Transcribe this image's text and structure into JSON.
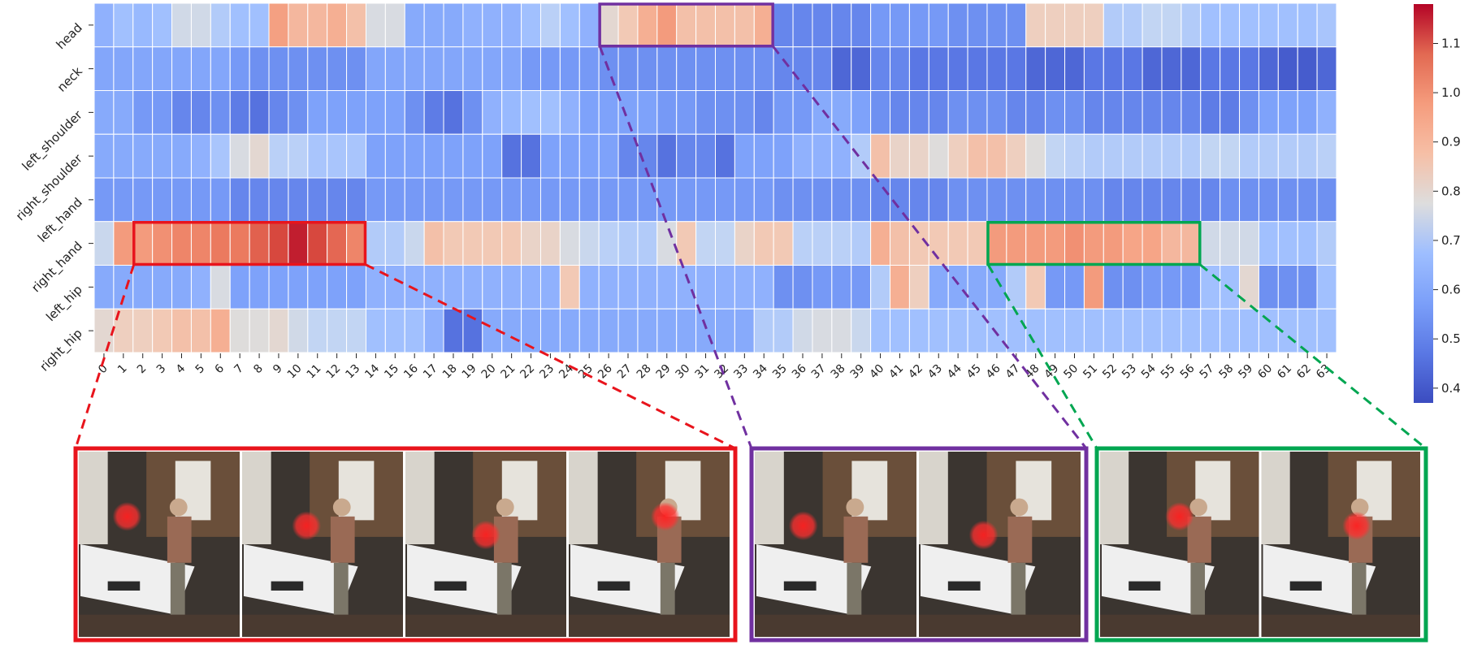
{
  "chart_data": {
    "type": "heatmap",
    "title": "",
    "xlabel": "",
    "ylabel": "",
    "rows": [
      "head",
      "neck",
      "left_shoulder",
      "right_shoulder",
      "left_hand",
      "right_hand",
      "left_hip",
      "right_hip"
    ],
    "columns": [
      "0",
      "1",
      "2",
      "3",
      "4",
      "5",
      "6",
      "7",
      "8",
      "9",
      "10",
      "11",
      "12",
      "13",
      "14",
      "15",
      "16",
      "17",
      "18",
      "19",
      "20",
      "21",
      "22",
      "23",
      "24",
      "25",
      "26",
      "27",
      "28",
      "29",
      "30",
      "31",
      "32",
      "33",
      "34",
      "35",
      "36",
      "37",
      "38",
      "39",
      "40",
      "41",
      "42",
      "43",
      "44",
      "45",
      "46",
      "47",
      "48",
      "49",
      "50",
      "51",
      "52",
      "53",
      "54",
      "55",
      "56",
      "57",
      "58",
      "59",
      "60",
      "61",
      "62",
      "63"
    ],
    "values": [
      [
        0.58,
        0.62,
        0.6,
        0.62,
        0.74,
        0.74,
        0.66,
        0.62,
        0.62,
        0.95,
        0.9,
        0.9,
        0.92,
        0.88,
        0.76,
        0.76,
        0.56,
        0.56,
        0.56,
        0.58,
        0.58,
        0.58,
        0.62,
        0.68,
        0.62,
        0.58,
        0.8,
        0.86,
        0.92,
        0.96,
        0.88,
        0.88,
        0.88,
        0.88,
        0.92,
        0.48,
        0.48,
        0.48,
        0.48,
        0.48,
        0.52,
        0.52,
        0.52,
        0.52,
        0.5,
        0.5,
        0.5,
        0.5,
        0.84,
        0.84,
        0.84,
        0.84,
        0.66,
        0.66,
        0.7,
        0.7,
        0.66,
        0.62,
        0.62,
        0.62,
        0.62,
        0.62,
        0.62,
        0.64
      ],
      [
        0.55,
        0.55,
        0.55,
        0.55,
        0.55,
        0.55,
        0.55,
        0.52,
        0.5,
        0.5,
        0.5,
        0.5,
        0.5,
        0.5,
        0.55,
        0.55,
        0.55,
        0.55,
        0.55,
        0.55,
        0.55,
        0.55,
        0.52,
        0.52,
        0.52,
        0.52,
        0.5,
        0.5,
        0.5,
        0.5,
        0.5,
        0.5,
        0.5,
        0.5,
        0.5,
        0.48,
        0.48,
        0.48,
        0.42,
        0.42,
        0.48,
        0.48,
        0.45,
        0.45,
        0.45,
        0.45,
        0.45,
        0.45,
        0.42,
        0.42,
        0.42,
        0.45,
        0.45,
        0.45,
        0.42,
        0.42,
        0.42,
        0.45,
        0.45,
        0.45,
        0.42,
        0.4,
        0.4,
        0.42
      ],
      [
        0.56,
        0.56,
        0.52,
        0.52,
        0.48,
        0.48,
        0.5,
        0.46,
        0.44,
        0.48,
        0.5,
        0.54,
        0.54,
        0.54,
        0.54,
        0.54,
        0.5,
        0.46,
        0.44,
        0.5,
        0.58,
        0.6,
        0.62,
        0.62,
        0.58,
        0.54,
        0.54,
        0.54,
        0.54,
        0.52,
        0.52,
        0.5,
        0.5,
        0.5,
        0.48,
        0.52,
        0.52,
        0.56,
        0.56,
        0.54,
        0.5,
        0.48,
        0.48,
        0.48,
        0.5,
        0.5,
        0.5,
        0.48,
        0.48,
        0.5,
        0.5,
        0.48,
        0.48,
        0.48,
        0.48,
        0.48,
        0.48,
        0.46,
        0.46,
        0.5,
        0.54,
        0.54,
        0.54,
        0.58
      ],
      [
        0.56,
        0.56,
        0.56,
        0.56,
        0.56,
        0.58,
        0.64,
        0.76,
        0.8,
        0.68,
        0.68,
        0.64,
        0.64,
        0.64,
        0.54,
        0.54,
        0.54,
        0.54,
        0.54,
        0.54,
        0.54,
        0.44,
        0.44,
        0.54,
        0.54,
        0.54,
        0.54,
        0.48,
        0.48,
        0.44,
        0.48,
        0.48,
        0.44,
        0.54,
        0.54,
        0.54,
        0.58,
        0.58,
        0.58,
        0.66,
        0.88,
        0.82,
        0.82,
        0.78,
        0.84,
        0.88,
        0.88,
        0.84,
        0.78,
        0.7,
        0.68,
        0.66,
        0.66,
        0.66,
        0.66,
        0.66,
        0.66,
        0.7,
        0.7,
        0.66,
        0.66,
        0.66,
        0.66,
        0.68
      ],
      [
        0.52,
        0.52,
        0.52,
        0.52,
        0.52,
        0.52,
        0.52,
        0.48,
        0.48,
        0.48,
        0.48,
        0.48,
        0.48,
        0.48,
        0.52,
        0.52,
        0.52,
        0.52,
        0.52,
        0.52,
        0.52,
        0.52,
        0.52,
        0.52,
        0.52,
        0.52,
        0.52,
        0.52,
        0.52,
        0.52,
        0.52,
        0.52,
        0.52,
        0.52,
        0.52,
        0.5,
        0.5,
        0.5,
        0.5,
        0.5,
        0.48,
        0.48,
        0.48,
        0.48,
        0.5,
        0.5,
        0.5,
        0.5,
        0.5,
        0.5,
        0.5,
        0.5,
        0.48,
        0.48,
        0.48,
        0.48,
        0.48,
        0.48,
        0.5,
        0.5,
        0.5,
        0.5,
        0.5,
        0.5
      ],
      [
        0.72,
        0.96,
        0.96,
        0.98,
        1.0,
        1.0,
        1.02,
        1.02,
        1.06,
        1.1,
        1.15,
        1.1,
        1.05,
        1.0,
        0.66,
        0.66,
        0.72,
        0.88,
        0.86,
        0.86,
        0.86,
        0.86,
        0.82,
        0.82,
        0.76,
        0.72,
        0.68,
        0.66,
        0.66,
        0.76,
        0.86,
        0.7,
        0.7,
        0.82,
        0.86,
        0.86,
        0.68,
        0.68,
        0.68,
        0.66,
        0.92,
        0.88,
        0.86,
        0.86,
        0.86,
        0.86,
        0.96,
        0.96,
        0.96,
        0.96,
        0.98,
        0.96,
        0.96,
        0.94,
        0.94,
        0.9,
        0.9,
        0.74,
        0.74,
        0.74,
        0.62,
        0.62,
        0.62,
        0.66
      ],
      [
        0.56,
        0.56,
        0.56,
        0.56,
        0.56,
        0.58,
        0.76,
        0.54,
        0.54,
        0.54,
        0.54,
        0.54,
        0.54,
        0.54,
        0.58,
        0.58,
        0.58,
        0.58,
        0.58,
        0.58,
        0.58,
        0.58,
        0.58,
        0.58,
        0.86,
        0.58,
        0.58,
        0.58,
        0.58,
        0.58,
        0.58,
        0.58,
        0.58,
        0.58,
        0.58,
        0.5,
        0.5,
        0.52,
        0.52,
        0.52,
        0.66,
        0.92,
        0.84,
        0.56,
        0.56,
        0.56,
        0.56,
        0.66,
        0.86,
        0.52,
        0.52,
        0.96,
        0.5,
        0.5,
        0.52,
        0.52,
        0.52,
        0.62,
        0.62,
        0.8,
        0.5,
        0.5,
        0.5,
        0.62
      ],
      [
        0.8,
        0.84,
        0.84,
        0.86,
        0.88,
        0.88,
        0.92,
        0.78,
        0.78,
        0.8,
        0.74,
        0.7,
        0.7,
        0.7,
        0.62,
        0.62,
        0.62,
        0.58,
        0.44,
        0.44,
        0.56,
        0.56,
        0.56,
        0.56,
        0.56,
        0.56,
        0.56,
        0.56,
        0.56,
        0.56,
        0.56,
        0.56,
        0.56,
        0.56,
        0.66,
        0.66,
        0.74,
        0.76,
        0.76,
        0.72,
        0.62,
        0.62,
        0.62,
        0.62,
        0.62,
        0.62,
        0.62,
        0.62,
        0.62,
        0.62,
        0.62,
        0.62,
        0.62,
        0.62,
        0.62,
        0.62,
        0.62,
        0.62,
        0.62,
        0.62,
        0.62,
        0.62,
        0.62,
        0.62
      ]
    ],
    "colorbar": {
      "colormap": "coolwarm",
      "range": [
        0.37,
        1.18
      ],
      "ticks": [
        "0.4",
        "0.5",
        "0.6",
        "0.7",
        "0.8",
        "0.9",
        "1.0",
        "1.1"
      ]
    },
    "highlights": [
      {
        "row": "head",
        "col_start": 26,
        "col_end": 34,
        "color": "#7030a0"
      },
      {
        "row": "right_hand",
        "col_start": 2,
        "col_end": 13,
        "color": "#e8141c"
      },
      {
        "row": "right_hand",
        "col_start": 46,
        "col_end": 56,
        "color": "#00a651"
      }
    ],
    "frame_groups": [
      {
        "color": "#e8141c",
        "frames": 4
      },
      {
        "color": "#7030a0",
        "frames": 2
      },
      {
        "color": "#00a651",
        "frames": 2
      }
    ],
    "grid": true,
    "legend": "colorbar-right"
  }
}
